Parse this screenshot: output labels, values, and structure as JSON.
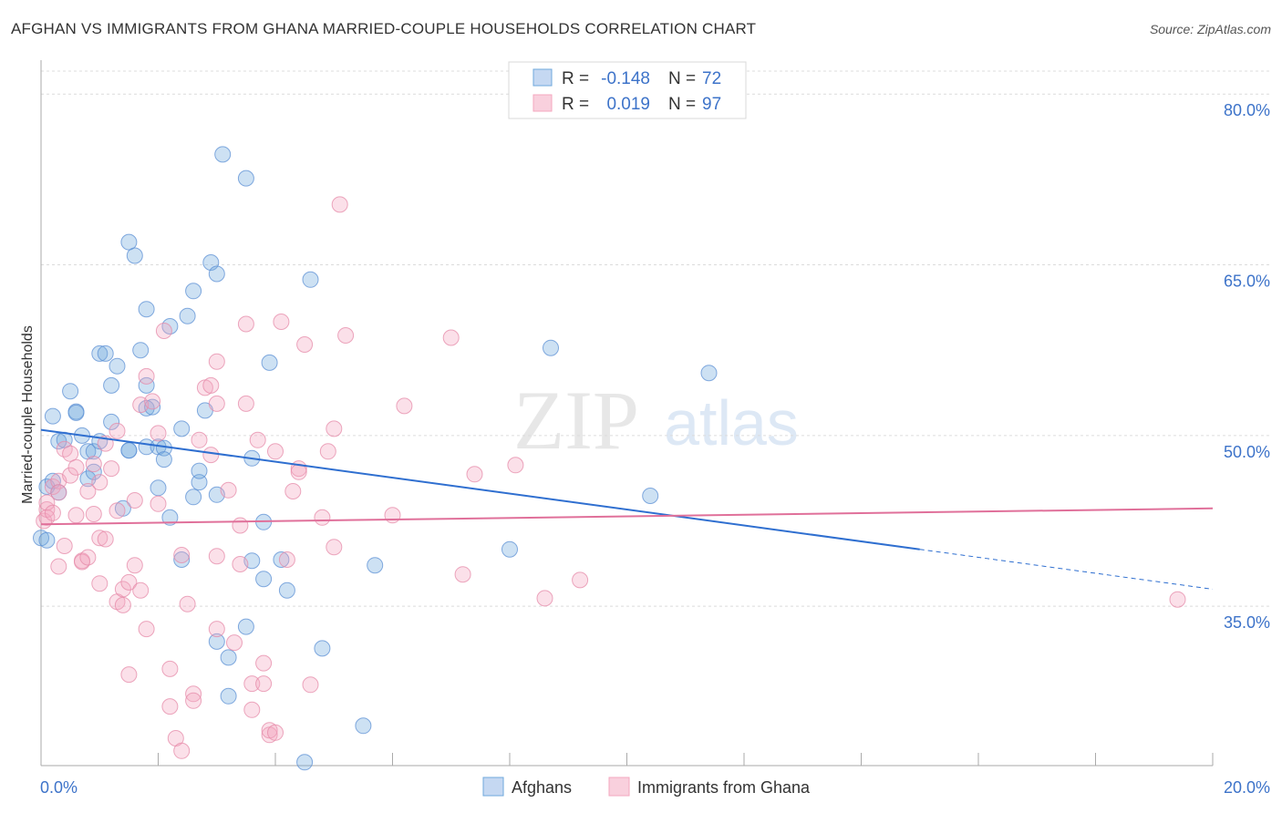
{
  "title": "AFGHAN VS IMMIGRANTS FROM GHANA MARRIED-COUPLE HOUSEHOLDS CORRELATION CHART",
  "source": "Source: ZipAtlas.com",
  "watermark": {
    "zip": "ZIP",
    "atlas": "atlas"
  },
  "legend_stats": [
    {
      "r_label": "R =",
      "r_value": "-0.148",
      "n_label": "N =",
      "n_value": "72",
      "color": "#6fa8dc"
    },
    {
      "r_label": "R =",
      "r_value": "0.019",
      "n_label": "N =",
      "n_value": "97",
      "color": "#f4a7bf"
    }
  ],
  "chart_data": {
    "type": "scatter",
    "ylabel": "Married-couple Households",
    "xlim": [
      0,
      20
    ],
    "ylim": [
      21,
      82.5
    ],
    "x_tick_labels": [
      "0.0%",
      "20.0%"
    ],
    "y_ticks": [
      35,
      50,
      65,
      80
    ],
    "y_tick_labels": [
      "35.0%",
      "50.0%",
      "65.0%",
      "80.0%"
    ],
    "grid": true,
    "legend_position": "bottom",
    "series": [
      {
        "name": "Afghans",
        "color": "#6fa8dc",
        "stroke": "#5b8fd4",
        "trend": {
          "x0": 0,
          "y0": 50.5,
          "x1": 15,
          "y1": 40.0,
          "dash_to_x": 20,
          "dash_to_y": 36.5,
          "color": "#2f6fd0"
        },
        "points": [
          [
            0.0,
            41.0
          ],
          [
            0.1,
            45.5
          ],
          [
            0.2,
            46.0
          ],
          [
            0.2,
            51.7
          ],
          [
            0.3,
            45.0
          ],
          [
            0.3,
            49.5
          ],
          [
            0.4,
            49.6
          ],
          [
            0.5,
            53.9
          ],
          [
            0.6,
            52.1
          ],
          [
            0.6,
            52.0
          ],
          [
            0.7,
            50.0
          ],
          [
            0.8,
            48.6
          ],
          [
            0.8,
            46.2
          ],
          [
            0.9,
            46.8
          ],
          [
            0.9,
            48.6
          ],
          [
            1.0,
            49.5
          ],
          [
            1.0,
            57.2
          ],
          [
            1.1,
            57.2
          ],
          [
            1.2,
            51.2
          ],
          [
            1.2,
            54.4
          ],
          [
            1.3,
            56.1
          ],
          [
            1.4,
            43.6
          ],
          [
            1.5,
            48.7
          ],
          [
            1.5,
            48.7
          ],
          [
            1.5,
            67.0
          ],
          [
            1.6,
            65.8
          ],
          [
            1.7,
            57.5
          ],
          [
            1.8,
            61.1
          ],
          [
            1.8,
            52.4
          ],
          [
            1.8,
            49.0
          ],
          [
            1.8,
            54.4
          ],
          [
            1.9,
            52.5
          ],
          [
            2.0,
            49.0
          ],
          [
            2.0,
            45.4
          ],
          [
            2.1,
            48.9
          ],
          [
            2.1,
            47.9
          ],
          [
            2.2,
            42.8
          ],
          [
            2.2,
            59.6
          ],
          [
            2.4,
            50.6
          ],
          [
            2.4,
            39.1
          ],
          [
            2.5,
            60.5
          ],
          [
            2.6,
            44.6
          ],
          [
            2.6,
            62.7
          ],
          [
            2.7,
            45.9
          ],
          [
            2.7,
            46.9
          ],
          [
            2.8,
            52.2
          ],
          [
            2.9,
            65.2
          ],
          [
            3.0,
            44.8
          ],
          [
            3.0,
            64.2
          ],
          [
            3.0,
            31.9
          ],
          [
            3.1,
            74.7
          ],
          [
            3.2,
            27.1
          ],
          [
            3.2,
            30.5
          ],
          [
            3.5,
            72.6
          ],
          [
            3.5,
            33.2
          ],
          [
            3.6,
            48.0
          ],
          [
            3.6,
            39.0
          ],
          [
            3.8,
            42.4
          ],
          [
            3.8,
            37.4
          ],
          [
            3.9,
            56.4
          ],
          [
            4.1,
            39.1
          ],
          [
            4.2,
            36.4
          ],
          [
            4.5,
            21.3
          ],
          [
            4.6,
            63.7
          ],
          [
            4.8,
            31.3
          ],
          [
            5.5,
            24.5
          ],
          [
            5.7,
            38.6
          ],
          [
            8.0,
            40.0
          ],
          [
            8.7,
            57.7
          ],
          [
            10.4,
            44.7
          ],
          [
            11.4,
            55.5
          ],
          [
            0.1,
            40.8
          ]
        ]
      },
      {
        "name": "Immigrants from Ghana",
        "color": "#f4a7bf",
        "stroke": "#e58aa8",
        "trend": {
          "x0": 0,
          "y0": 42.2,
          "x1": 20,
          "y1": 43.6,
          "color": "#e0709a"
        },
        "points": [
          [
            0.05,
            42.5
          ],
          [
            0.1,
            43.5
          ],
          [
            0.1,
            42.8
          ],
          [
            0.1,
            44.1
          ],
          [
            0.2,
            43.2
          ],
          [
            0.2,
            45.5
          ],
          [
            0.3,
            46.0
          ],
          [
            0.3,
            38.5
          ],
          [
            0.3,
            45.0
          ],
          [
            0.4,
            40.3
          ],
          [
            0.4,
            48.8
          ],
          [
            0.5,
            46.5
          ],
          [
            0.5,
            48.4
          ],
          [
            0.6,
            47.2
          ],
          [
            0.6,
            43.0
          ],
          [
            0.7,
            39.0
          ],
          [
            0.7,
            38.9
          ],
          [
            0.8,
            39.3
          ],
          [
            0.8,
            45.1
          ],
          [
            0.9,
            43.1
          ],
          [
            0.9,
            47.5
          ],
          [
            1.0,
            45.9
          ],
          [
            1.0,
            41.0
          ],
          [
            1.0,
            37.0
          ],
          [
            1.1,
            49.3
          ],
          [
            1.1,
            40.9
          ],
          [
            1.2,
            47.1
          ],
          [
            1.3,
            43.4
          ],
          [
            1.3,
            35.4
          ],
          [
            1.3,
            50.4
          ],
          [
            1.4,
            35.1
          ],
          [
            1.4,
            36.5
          ],
          [
            1.5,
            37.1
          ],
          [
            1.5,
            29.0
          ],
          [
            1.6,
            38.6
          ],
          [
            1.6,
            44.3
          ],
          [
            1.7,
            36.4
          ],
          [
            1.7,
            52.7
          ],
          [
            1.8,
            55.2
          ],
          [
            1.8,
            33.0
          ],
          [
            1.9,
            53.0
          ],
          [
            2.0,
            44.0
          ],
          [
            2.0,
            50.2
          ],
          [
            2.1,
            59.2
          ],
          [
            2.2,
            26.2
          ],
          [
            2.2,
            29.5
          ],
          [
            2.3,
            23.4
          ],
          [
            2.4,
            39.5
          ],
          [
            2.4,
            22.3
          ],
          [
            2.5,
            35.2
          ],
          [
            2.6,
            27.3
          ],
          [
            2.6,
            26.7
          ],
          [
            2.7,
            49.6
          ],
          [
            2.8,
            54.2
          ],
          [
            2.9,
            48.3
          ],
          [
            2.9,
            54.4
          ],
          [
            3.0,
            52.8
          ],
          [
            3.0,
            56.5
          ],
          [
            3.0,
            39.4
          ],
          [
            3.0,
            33.0
          ],
          [
            3.2,
            45.2
          ],
          [
            3.3,
            31.8
          ],
          [
            3.4,
            38.7
          ],
          [
            3.4,
            42.1
          ],
          [
            3.5,
            59.8
          ],
          [
            3.5,
            52.8
          ],
          [
            3.6,
            28.2
          ],
          [
            3.6,
            25.9
          ],
          [
            3.7,
            49.6
          ],
          [
            3.8,
            30.0
          ],
          [
            3.8,
            28.2
          ],
          [
            3.9,
            23.7
          ],
          [
            3.9,
            24.1
          ],
          [
            4.0,
            23.9
          ],
          [
            4.0,
            48.6
          ],
          [
            4.1,
            60.0
          ],
          [
            4.2,
            39.1
          ],
          [
            4.3,
            45.1
          ],
          [
            4.4,
            47.1
          ],
          [
            4.4,
            46.8
          ],
          [
            4.5,
            58.0
          ],
          [
            4.6,
            28.1
          ],
          [
            4.8,
            42.8
          ],
          [
            4.9,
            48.6
          ],
          [
            5.0,
            50.6
          ],
          [
            5.0,
            40.2
          ],
          [
            5.1,
            70.3
          ],
          [
            5.2,
            58.8
          ],
          [
            6.0,
            43.0
          ],
          [
            6.2,
            52.6
          ],
          [
            7.0,
            58.6
          ],
          [
            7.2,
            37.8
          ],
          [
            7.4,
            46.6
          ],
          [
            8.1,
            47.4
          ],
          [
            8.6,
            35.7
          ],
          [
            9.2,
            37.3
          ],
          [
            19.4,
            35.6
          ]
        ]
      }
    ]
  }
}
